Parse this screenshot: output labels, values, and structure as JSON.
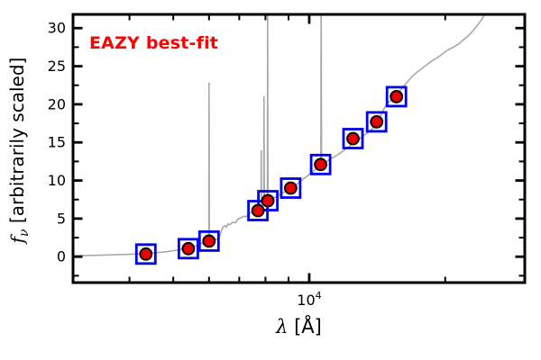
{
  "figure": {
    "annotation": "EAZY best-fit",
    "annotation_color": "#ff0000",
    "xlabel_lambda": "λ",
    "xlabel_rest": " [Å]",
    "ylabel_f": "f",
    "ylabel_sub": "ν",
    "ylabel_rest": " [arbitrarily scaled]"
  },
  "chart_data": {
    "type": "line",
    "title": "",
    "annotation": "EAZY best-fit",
    "xlabel": "λ [Å]",
    "ylabel": "f_ν [arbitrarily scaled]",
    "x_scale": "log",
    "xlim": [
      3000,
      30000
    ],
    "ylim": [
      -3.4,
      31.8
    ],
    "grid": false,
    "legend": "none",
    "x_major_ticks": [
      10000
    ],
    "x_major_tick_label": {
      "base": "10",
      "exp": "4"
    },
    "x_minor_ticks": [
      4000,
      5000,
      6000,
      7000,
      8000,
      9000,
      20000
    ],
    "y_major_ticks": [
      0,
      5,
      10,
      15,
      20,
      25,
      30
    ],
    "y_major_tick_labels": [
      "0",
      "5",
      "10",
      "15",
      "20",
      "25",
      "30"
    ],
    "y_minor_ticks": [
      -2.5,
      2.5,
      7.5,
      12.5,
      17.5,
      22.5,
      27.5
    ],
    "colors": {
      "spectrum": "#a8a8a8",
      "square_marker": "#0000ee",
      "circle_marker": "#ed0000",
      "circle_edge": "#000000",
      "frame": "#000000"
    },
    "series": [
      {
        "name": "eazy-model-spectrum",
        "type": "line",
        "color": "#a8a8a8",
        "points": [
          [
            3000,
            0.12
          ],
          [
            3200,
            0.16
          ],
          [
            3350,
            0.18
          ],
          [
            3500,
            0.22
          ],
          [
            3650,
            0.24
          ],
          [
            3800,
            0.28
          ],
          [
            3950,
            0.3
          ],
          [
            4100,
            0.34
          ],
          [
            4250,
            0.38
          ],
          [
            4350,
            0.42
          ],
          [
            4500,
            0.48
          ],
          [
            4650,
            0.56
          ],
          [
            4800,
            0.64
          ],
          [
            4950,
            0.74
          ],
          [
            5100,
            0.86
          ],
          [
            5250,
            0.97
          ],
          [
            5400,
            1.1
          ],
          [
            5550,
            1.32
          ],
          [
            5700,
            1.58
          ],
          [
            5850,
            1.85
          ],
          [
            5950,
            2.0
          ],
          [
            5995,
            2.05
          ],
          [
            6000,
            22.8
          ],
          [
            6010,
            2.1
          ],
          [
            6100,
            2.2
          ],
          [
            6200,
            2.32
          ],
          [
            6280,
            2.28
          ],
          [
            6330,
            2.6
          ],
          [
            6390,
            3.4
          ],
          [
            6450,
            3.95
          ],
          [
            6510,
            4.05
          ],
          [
            6550,
            3.85
          ],
          [
            6610,
            4.3
          ],
          [
            6670,
            4.18
          ],
          [
            6760,
            4.52
          ],
          [
            6860,
            4.46
          ],
          [
            6960,
            4.95
          ],
          [
            7060,
            5.1
          ],
          [
            7160,
            5.32
          ],
          [
            7240,
            5.22
          ],
          [
            7360,
            5.62
          ],
          [
            7500,
            5.95
          ],
          [
            7650,
            6.1
          ],
          [
            7750,
            6.3
          ],
          [
            7820,
            6.55
          ],
          [
            7829,
            13.9
          ],
          [
            7840,
            6.6
          ],
          [
            7930,
            6.8
          ],
          [
            7940,
            21.0
          ],
          [
            7955,
            6.95
          ],
          [
            8080,
            7.15
          ],
          [
            8090,
            33.0
          ],
          [
            8105,
            7.3
          ],
          [
            8250,
            7.55
          ],
          [
            8400,
            7.8
          ],
          [
            8550,
            8.05
          ],
          [
            8700,
            8.35
          ],
          [
            8820,
            8.5
          ],
          [
            8950,
            8.8
          ],
          [
            9050,
            8.95
          ],
          [
            9150,
            9.1
          ],
          [
            9280,
            9.5
          ],
          [
            9360,
            9.42
          ],
          [
            9500,
            9.8
          ],
          [
            9650,
            10.1
          ],
          [
            9800,
            10.4
          ],
          [
            9950,
            10.7
          ],
          [
            10100,
            11.0
          ],
          [
            10250,
            11.3
          ],
          [
            10400,
            11.6
          ],
          [
            10550,
            11.85
          ],
          [
            10610,
            12.0
          ],
          [
            10625,
            33.0
          ],
          [
            10645,
            12.05
          ],
          [
            10900,
            12.45
          ],
          [
            11200,
            12.9
          ],
          [
            11500,
            13.3
          ],
          [
            11800,
            13.75
          ],
          [
            12100,
            14.2
          ],
          [
            12400,
            14.7
          ],
          [
            12600,
            15.1
          ],
          [
            12900,
            15.45
          ],
          [
            13200,
            15.9
          ],
          [
            13500,
            16.3
          ],
          [
            13800,
            16.8
          ],
          [
            14100,
            17.55
          ],
          [
            14250,
            18.15
          ],
          [
            14400,
            18.6
          ],
          [
            14600,
            19.3
          ],
          [
            14800,
            19.9
          ],
          [
            15000,
            20.3
          ],
          [
            15200,
            20.55
          ],
          [
            15500,
            21.0
          ],
          [
            15800,
            21.6
          ],
          [
            16100,
            22.2
          ],
          [
            16400,
            22.8
          ],
          [
            16700,
            23.3
          ],
          [
            17000,
            23.8
          ],
          [
            17300,
            24.2
          ],
          [
            17600,
            24.5
          ],
          [
            18000,
            25.0
          ],
          [
            18400,
            25.4
          ],
          [
            18800,
            25.8
          ],
          [
            19200,
            26.1
          ],
          [
            19600,
            26.5
          ],
          [
            20000,
            26.9
          ],
          [
            20500,
            27.3
          ],
          [
            21000,
            27.6
          ],
          [
            21500,
            28.0
          ],
          [
            22000,
            28.5
          ],
          [
            22500,
            29.0
          ],
          [
            23000,
            29.6
          ],
          [
            23500,
            30.3
          ],
          [
            24000,
            31.0
          ],
          [
            24400,
            31.7
          ],
          [
            24800,
            32.6
          ]
        ]
      },
      {
        "name": "template-photometry-squares",
        "type": "scatter",
        "marker": "open-square",
        "color": "#0000ee",
        "x": [
          4350,
          5400,
          6000,
          7700,
          8100,
          9100,
          10600,
          12500,
          14100,
          15600
        ],
        "y": [
          0.35,
          1.05,
          2.05,
          6.05,
          7.35,
          9.0,
          12.1,
          15.5,
          17.7,
          21.0
        ]
      },
      {
        "name": "observed-photometry-circles",
        "type": "scatter",
        "marker": "filled-circle",
        "color": "#ed0000",
        "edge_color": "#000000",
        "x": [
          4350,
          5400,
          6000,
          7700,
          8100,
          9100,
          10600,
          12500,
          14100,
          15600
        ],
        "y": [
          0.35,
          1.05,
          2.05,
          6.05,
          7.35,
          9.0,
          12.1,
          15.5,
          17.7,
          21.0
        ]
      }
    ]
  }
}
